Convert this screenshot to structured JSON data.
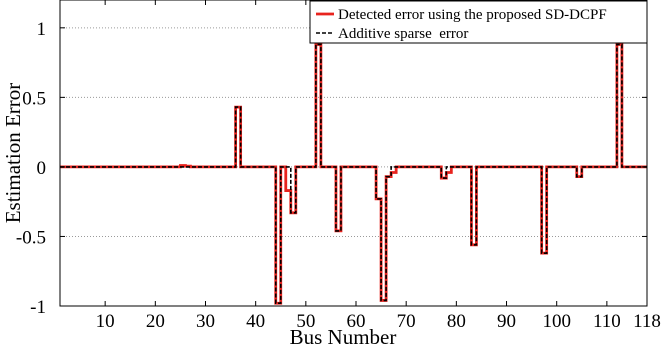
{
  "chart_data": {
    "type": "line",
    "xlabel": "Bus Number",
    "ylabel": "Estimation Error",
    "xlim": [
      1,
      118
    ],
    "ylim": [
      -1,
      1.2
    ],
    "x_ticks": [
      10,
      20,
      30,
      40,
      50,
      60,
      70,
      80,
      90,
      100,
      110,
      118
    ],
    "y_ticks": [
      1,
      0.5,
      0,
      -0.5,
      -1
    ],
    "y_tick_labels": [
      "1",
      "0.5",
      "0",
      "-0.5",
      "-1"
    ],
    "grid": "horizontal dotted",
    "legend_position": "top-right",
    "series": [
      {
        "name": "Detected error using the proposed SD-DCPF",
        "color": "#e8231e",
        "style": "solid",
        "points": [
          [
            1,
            0
          ],
          [
            25,
            0
          ],
          [
            25,
            0.01
          ],
          [
            26,
            0.01
          ],
          [
            26,
            0.005
          ],
          [
            27,
            0.005
          ],
          [
            27,
            0
          ],
          [
            36,
            0
          ],
          [
            36,
            0.43
          ],
          [
            37,
            0.43
          ],
          [
            37,
            0
          ],
          [
            44,
            0
          ],
          [
            44,
            -0.98
          ],
          [
            45,
            -0.98
          ],
          [
            45,
            0
          ],
          [
            46,
            0
          ],
          [
            46,
            -0.17
          ],
          [
            47,
            -0.17
          ],
          [
            47,
            -0.33
          ],
          [
            48,
            -0.33
          ],
          [
            48,
            0
          ],
          [
            52,
            0
          ],
          [
            52,
            0.88
          ],
          [
            53,
            0.88
          ],
          [
            53,
            0
          ],
          [
            56,
            0
          ],
          [
            56,
            -0.46
          ],
          [
            57,
            -0.46
          ],
          [
            57,
            0
          ],
          [
            64,
            0
          ],
          [
            64,
            -0.23
          ],
          [
            65,
            -0.23
          ],
          [
            65,
            -0.96
          ],
          [
            66,
            -0.96
          ],
          [
            66,
            -0.07
          ],
          [
            67,
            -0.07
          ],
          [
            67,
            -0.04
          ],
          [
            68,
            -0.04
          ],
          [
            68,
            0
          ],
          [
            77,
            0
          ],
          [
            77,
            -0.08
          ],
          [
            78,
            -0.08
          ],
          [
            78,
            -0.04
          ],
          [
            79,
            -0.04
          ],
          [
            79,
            0
          ],
          [
            83,
            0
          ],
          [
            83,
            -0.56
          ],
          [
            84,
            -0.56
          ],
          [
            84,
            0
          ],
          [
            97,
            0
          ],
          [
            97,
            -0.62
          ],
          [
            98,
            -0.62
          ],
          [
            98,
            0
          ],
          [
            104,
            0
          ],
          [
            104,
            -0.07
          ],
          [
            105,
            -0.07
          ],
          [
            105,
            0
          ],
          [
            112,
            0
          ],
          [
            112,
            0.88
          ],
          [
            113,
            0.88
          ],
          [
            113,
            0
          ],
          [
            118,
            0
          ]
        ]
      },
      {
        "name": "Additive sparse  error",
        "color": "#000000",
        "style": "dashed",
        "points": [
          [
            1,
            0
          ],
          [
            36,
            0
          ],
          [
            36,
            0.43
          ],
          [
            37,
            0.43
          ],
          [
            37,
            0
          ],
          [
            44,
            0
          ],
          [
            44,
            -0.98
          ],
          [
            45,
            -0.98
          ],
          [
            45,
            0
          ],
          [
            47,
            0
          ],
          [
            47,
            -0.33
          ],
          [
            48,
            -0.33
          ],
          [
            48,
            0
          ],
          [
            52,
            0
          ],
          [
            52,
            0.88
          ],
          [
            53,
            0.88
          ],
          [
            53,
            0
          ],
          [
            56,
            0
          ],
          [
            56,
            -0.46
          ],
          [
            57,
            -0.46
          ],
          [
            57,
            0
          ],
          [
            64,
            0
          ],
          [
            64,
            -0.23
          ],
          [
            65,
            -0.23
          ],
          [
            65,
            -0.96
          ],
          [
            66,
            -0.96
          ],
          [
            66,
            -0.07
          ],
          [
            67,
            -0.07
          ],
          [
            67,
            0
          ],
          [
            77,
            0
          ],
          [
            77,
            -0.08
          ],
          [
            78,
            -0.08
          ],
          [
            78,
            0
          ],
          [
            83,
            0
          ],
          [
            83,
            -0.56
          ],
          [
            84,
            -0.56
          ],
          [
            84,
            0
          ],
          [
            97,
            0
          ],
          [
            97,
            -0.62
          ],
          [
            98,
            -0.62
          ],
          [
            98,
            0
          ],
          [
            104,
            0
          ],
          [
            104,
            -0.07
          ],
          [
            105,
            -0.07
          ],
          [
            105,
            0
          ],
          [
            112,
            0
          ],
          [
            112,
            0.88
          ],
          [
            113,
            0.88
          ],
          [
            113,
            0
          ],
          [
            118,
            0
          ]
        ]
      }
    ]
  }
}
